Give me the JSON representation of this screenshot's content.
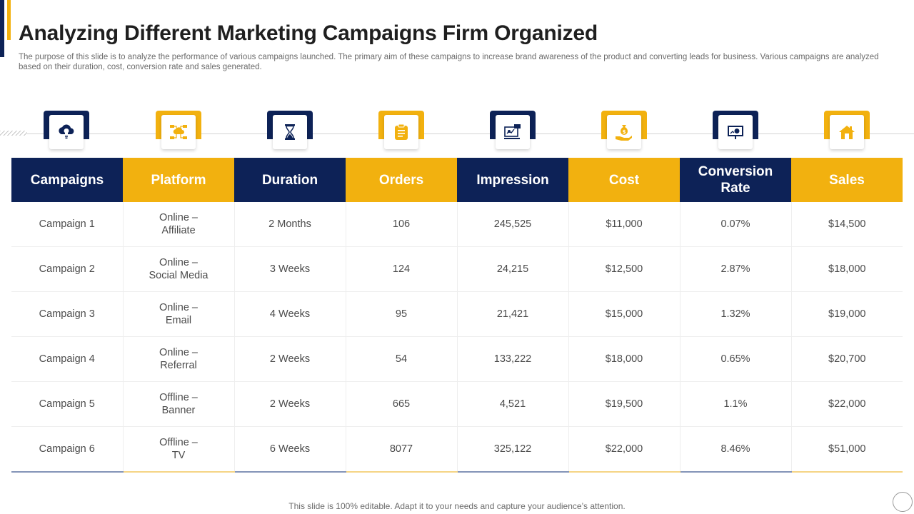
{
  "header": {
    "title": "Analyzing Different Marketing Campaigns Firm Organized",
    "subtitle": "The purpose of this slide is to analyze the performance of various campaigns launched. The primary aim of these campaigns to increase brand awareness of the product and converting leads for business. Various campaigns are analyzed based on their duration, cost, conversion rate and sales generated."
  },
  "colors": {
    "navy": "#0d2257",
    "gold": "#f2b10f"
  },
  "icons": [
    "cloud-lightbulb-icon",
    "network-cloud-icon",
    "hourglass-icon",
    "clipboard-icon",
    "monitor-analytics-icon",
    "money-bag-hand-icon",
    "presentation-chart-icon",
    "house-icon"
  ],
  "table": {
    "headers": [
      "Campaigns",
      "Platform",
      "Duration",
      "Orders",
      "Impression",
      "Cost",
      "Conversion\nRate",
      "Sales"
    ],
    "rows": [
      [
        "Campaign 1",
        "Online –\nAffiliate",
        "2 Months",
        "106",
        "245,525",
        "$11,000",
        "0.07%",
        "$14,500"
      ],
      [
        "Campaign 2",
        "Online –\nSocial Media",
        "3 Weeks",
        "124",
        "24,215",
        "$12,500",
        "2.87%",
        "$18,000"
      ],
      [
        "Campaign 3",
        "Online –\nEmail",
        "4 Weeks",
        "95",
        "21,421",
        "$15,000",
        "1.32%",
        "$19,000"
      ],
      [
        "Campaign 4",
        "Online –\nReferral",
        "2 Weeks",
        "54",
        "133,222",
        "$18,000",
        "0.65%",
        "$20,700"
      ],
      [
        "Campaign 5",
        "Offline –\nBanner",
        "2 Weeks",
        "665",
        "4,521",
        "$19,500",
        "1.1%",
        "$22,000"
      ],
      [
        "Campaign 6",
        "Offline –\nTV",
        "6 Weeks",
        "8077",
        "325,122",
        "$22,000",
        "8.46%",
        "$51,000"
      ]
    ]
  },
  "footer": {
    "text": "This slide is 100% editable. Adapt it to your needs and capture your audience’s attention."
  }
}
